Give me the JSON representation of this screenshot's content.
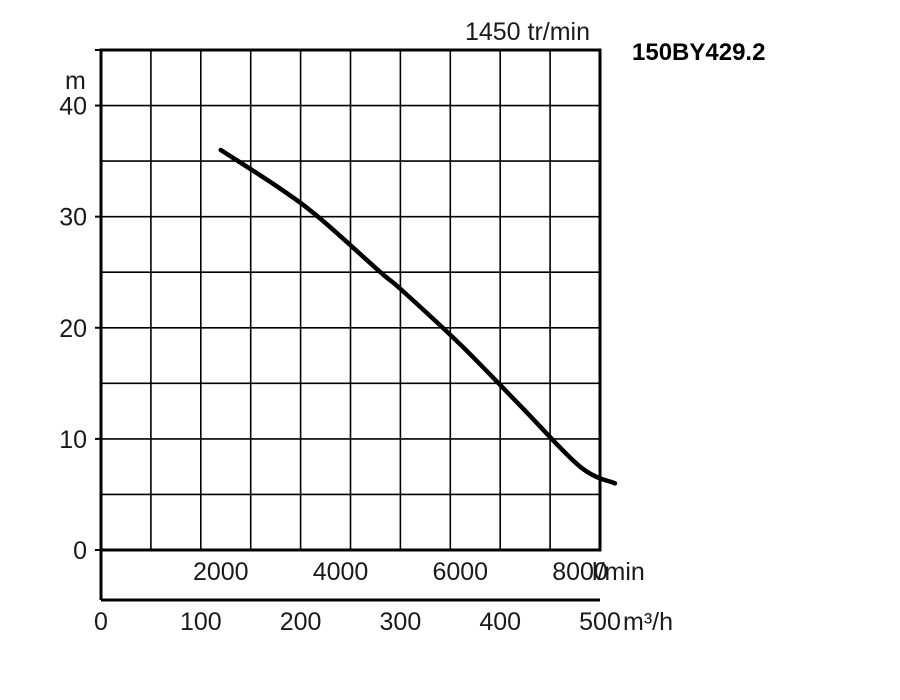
{
  "chart_data": {
    "type": "line",
    "title": "150BY429.2",
    "subtitle": "1450 tr/min",
    "ylabel": "m",
    "xlabel": "m³/h",
    "xlabel_secondary": "l/min",
    "ylim": [
      0,
      45
    ],
    "xlim": [
      0,
      500
    ],
    "grid": true,
    "y_ticks": [
      "0",
      "10",
      "20",
      "30",
      "40"
    ],
    "x_ticks": [
      "0",
      "100",
      "200",
      "300",
      "400",
      "500"
    ],
    "x_secondary_ticks": [
      "2000",
      "4000",
      "6000",
      "8000"
    ],
    "series": [
      {
        "x": [
          120,
          180,
          220,
          280,
          300,
          360,
          420,
          480,
          515
        ],
        "y": [
          36,
          32.5,
          29.8,
          25,
          23.5,
          18.5,
          13,
          7.5,
          6
        ]
      }
    ]
  }
}
